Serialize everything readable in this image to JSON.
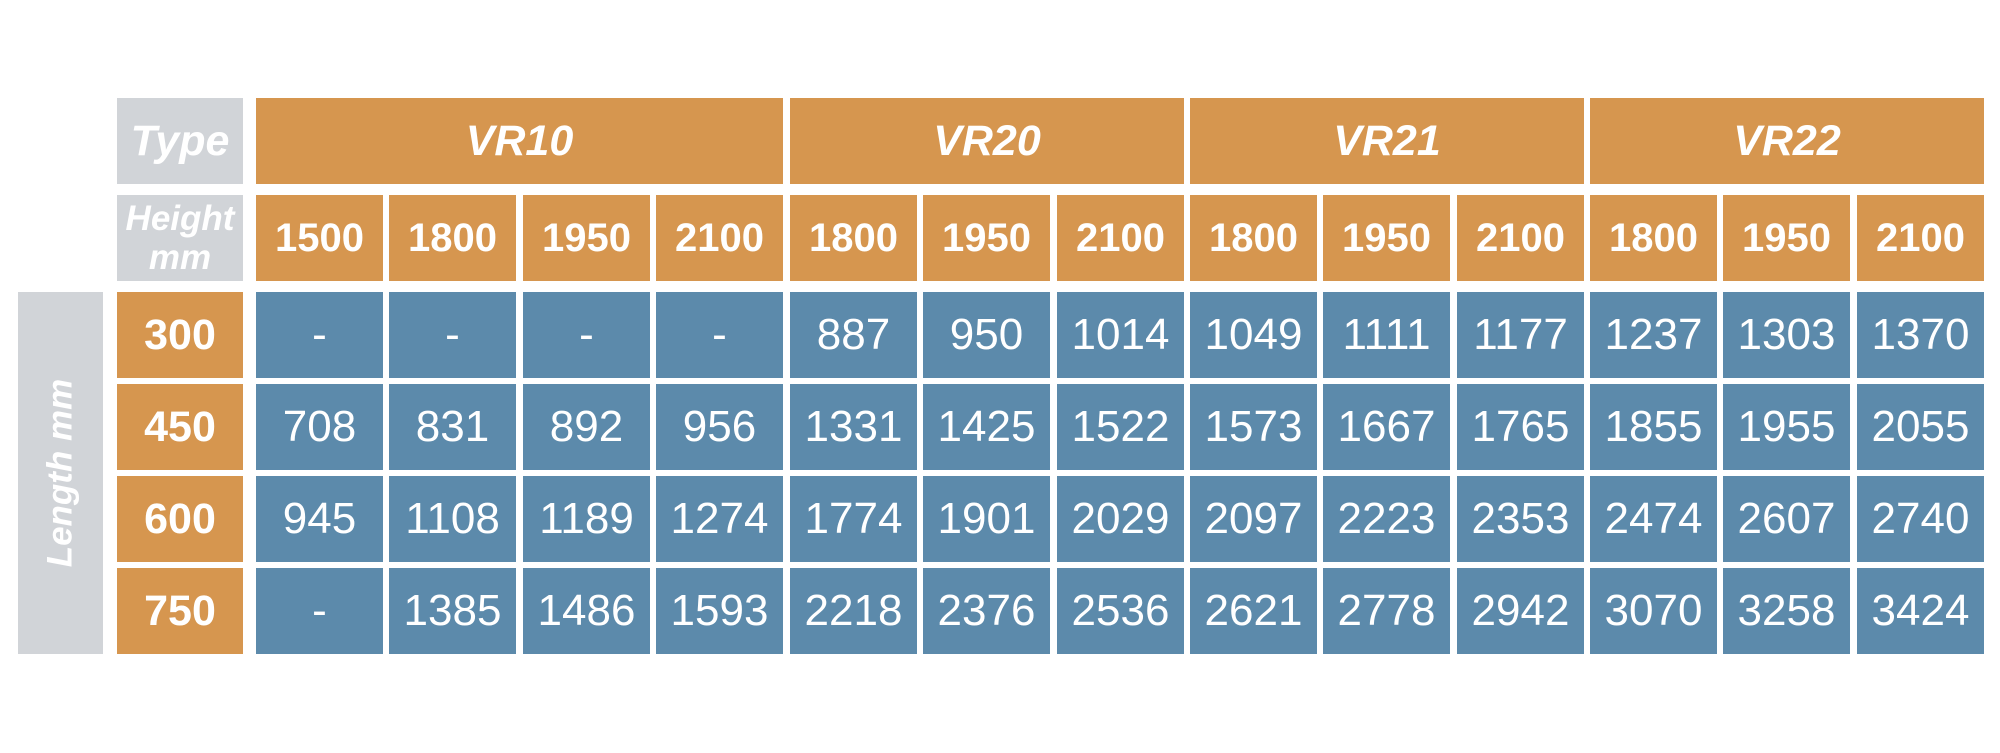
{
  "chart_data": {
    "type": "table",
    "corner_type_label": "Type",
    "corner_height_label": "Height mm",
    "length_axis_label": "Length mm",
    "types": [
      {
        "name": "VR10",
        "heights": [
          "1500",
          "1800",
          "1950",
          "2100"
        ]
      },
      {
        "name": "VR20",
        "heights": [
          "1800",
          "1950",
          "2100"
        ]
      },
      {
        "name": "VR21",
        "heights": [
          "1800",
          "1950",
          "2100"
        ]
      },
      {
        "name": "VR22",
        "heights": [
          "1800",
          "1950",
          "2100"
        ]
      }
    ],
    "lengths": [
      "300",
      "450",
      "600",
      "750"
    ],
    "rows": [
      [
        "-",
        "-",
        "-",
        "-",
        "887",
        "950",
        "1014",
        "1049",
        "1111",
        "1177",
        "1237",
        "1303",
        "1370"
      ],
      [
        "708",
        "831",
        "892",
        "956",
        "1331",
        "1425",
        "1522",
        "1573",
        "1667",
        "1765",
        "1855",
        "1955",
        "2055"
      ],
      [
        "945",
        "1108",
        "1189",
        "1274",
        "1774",
        "1901",
        "2029",
        "2097",
        "2223",
        "2353",
        "2474",
        "2607",
        "2740"
      ],
      [
        "-",
        "1385",
        "1486",
        "1593",
        "2218",
        "2376",
        "2536",
        "2621",
        "2778",
        "2942",
        "3070",
        "3258",
        "3424"
      ]
    ],
    "colors": {
      "header": "#d6964f",
      "value_cell": "#5c8aab",
      "label_cell": "#d1d4d8"
    }
  }
}
